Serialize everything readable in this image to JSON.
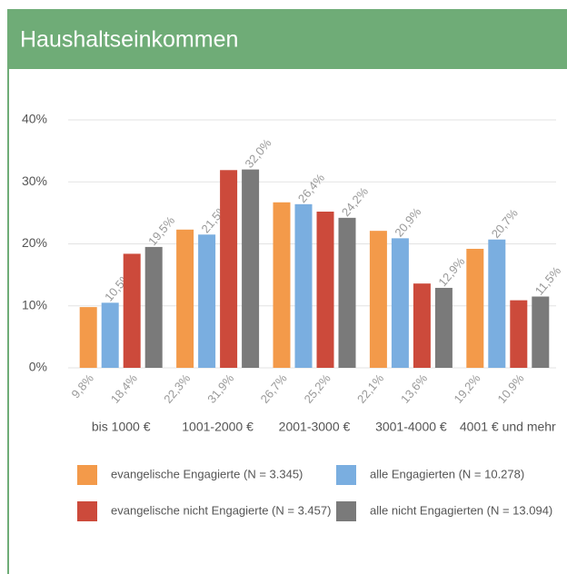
{
  "chart_data": {
    "type": "bar",
    "title": "Haushaltseinkommen",
    "categories": [
      "bis 1000 €",
      "1001-2000 €",
      "2001-3000 €",
      "3001-4000 €",
      "4001 € und mehr"
    ],
    "series": [
      {
        "name": "evangelische Engagierte (N = 3.345)",
        "color": "#f39a4a",
        "values": [
          9.8,
          22.3,
          26.7,
          22.1,
          19.2
        ],
        "value_labels": [
          "9,8%",
          "22,3%",
          "26,7%",
          "22,1%",
          "19,2%"
        ]
      },
      {
        "name": "alle Engagierten (N = 10.278)",
        "color": "#7aaee0",
        "values": [
          10.5,
          21.5,
          26.4,
          20.9,
          20.7
        ],
        "value_labels": [
          "10,5%",
          "21,5%",
          "26,4%",
          "20,9%",
          "20,7%"
        ]
      },
      {
        "name": "evangelische nicht Engagierte (N = 3.457)",
        "color": "#cc4a3b",
        "values": [
          18.4,
          31.9,
          25.2,
          13.6,
          10.9
        ],
        "value_labels": [
          "18,4%",
          "31,9%",
          "25,2%",
          "13,6%",
          "10,9%"
        ]
      },
      {
        "name": "alle nicht Engagierten (N = 13.094)",
        "color": "#7a7a7a",
        "values": [
          19.5,
          32.0,
          24.2,
          12.9,
          11.5
        ],
        "value_labels": [
          "19,5%",
          "32,0%",
          "24,2%",
          "12,9%",
          "11,5%"
        ]
      }
    ],
    "ylim": [
      0,
      40
    ],
    "yticks": [
      {
        "value": 0,
        "label": "0%"
      },
      {
        "value": 10,
        "label": "10%"
      },
      {
        "value": 20,
        "label": "20%"
      },
      {
        "value": 30,
        "label": "30%"
      },
      {
        "value": 40,
        "label": "40%"
      }
    ],
    "grid": true
  }
}
